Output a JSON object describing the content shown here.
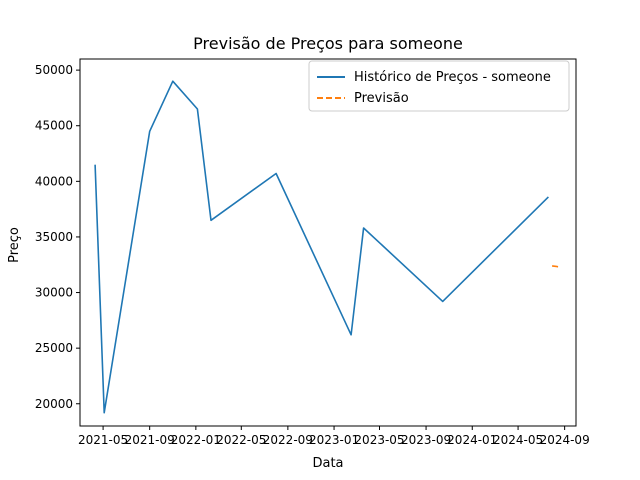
{
  "chart_data": {
    "type": "line",
    "title": "Previsão de Preços para someone",
    "xlabel": "Data",
    "ylabel": "Preço",
    "xlim": [
      "2021-03-01",
      "2024-10-01"
    ],
    "ylim": [
      18000,
      51000
    ],
    "x_ticks": [
      "2021-05",
      "2021-09",
      "2022-01",
      "2022-05",
      "2022-09",
      "2023-01",
      "2023-05",
      "2023-09",
      "2024-01",
      "2024-05",
      "2024-09"
    ],
    "y_ticks": [
      20000,
      25000,
      30000,
      35000,
      40000,
      45000,
      50000
    ],
    "legend_position": "top-right",
    "grid": false,
    "series": [
      {
        "name": "Histórico de Preços - someone",
        "style": "solid",
        "color": "#1f77b4",
        "x": [
          "2021-04-10",
          "2021-05-04",
          "2021-09-01",
          "2021-11-01",
          "2022-01-05",
          "2022-02-10",
          "2022-08-01",
          "2023-02-15",
          "2023-03-20",
          "2023-10-15",
          "2024-07-20"
        ],
        "y": [
          41500,
          19200,
          44500,
          49000,
          46500,
          36500,
          40700,
          26200,
          35800,
          29200,
          38600
        ]
      },
      {
        "name": "Previsão",
        "style": "dashed",
        "color": "#ff7f0e",
        "x": [
          "2024-07-30",
          "2024-08-10",
          "2024-08-22"
        ],
        "y": [
          32400,
          32350,
          32250
        ]
      }
    ]
  }
}
